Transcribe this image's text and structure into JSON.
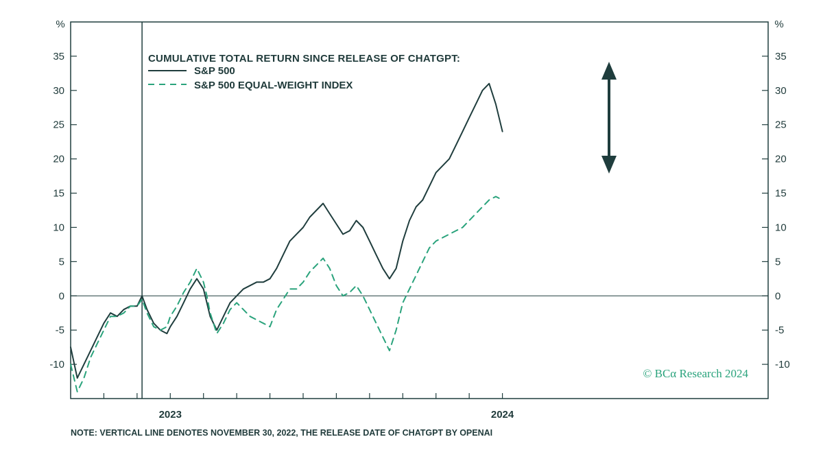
{
  "chart_data": {
    "type": "line",
    "title": "CUMULATIVE TOTAL RETURN SINCE RELEASE OF CHATGPT:",
    "ylabel": "%",
    "ylim": [
      -15,
      40
    ],
    "yticks": [
      -10,
      -5,
      0,
      5,
      10,
      15,
      20,
      25,
      30,
      35
    ],
    "xlim": [
      2022.7,
      2024.8
    ],
    "x_tick_positions": [
      2022.8,
      2022.9,
      2023.0,
      2023.1,
      2023.2,
      2023.3,
      2023.4,
      2023.5,
      2023.6,
      2023.7,
      2023.8,
      2023.9,
      2024.0
    ],
    "x_year_labels": [
      {
        "x": 2023.0,
        "label": "2023"
      },
      {
        "x": 2024.0,
        "label": "2024"
      }
    ],
    "vertical_line_x": 2022.915,
    "vertical_line_label": "November 30, 2022",
    "zero_line": true,
    "legend_position": "top-left",
    "series": [
      {
        "name": "S&P 500",
        "style": "solid",
        "color": "#1f3d3d",
        "x": [
          2022.7,
          2022.72,
          2022.74,
          2022.76,
          2022.78,
          2022.8,
          2022.82,
          2022.84,
          2022.86,
          2022.88,
          2022.9,
          2022.915,
          2022.93,
          2022.95,
          2022.97,
          2022.99,
          2023.0,
          2023.02,
          2023.04,
          2023.06,
          2023.08,
          2023.1,
          2023.11,
          2023.12,
          2023.14,
          2023.16,
          2023.18,
          2023.2,
          2023.22,
          2023.24,
          2023.26,
          2023.28,
          2023.3,
          2023.32,
          2023.34,
          2023.36,
          2023.38,
          2023.4,
          2023.42,
          2023.44,
          2023.46,
          2023.48,
          2023.5,
          2023.52,
          2023.54,
          2023.56,
          2023.58,
          2023.6,
          2023.62,
          2023.64,
          2023.66,
          2023.68,
          2023.7,
          2023.72,
          2023.74,
          2023.76,
          2023.78,
          2023.8,
          2023.82,
          2023.84,
          2023.86,
          2023.88,
          2023.9,
          2023.92,
          2023.94,
          2023.96,
          2023.98,
          2024.0
        ],
        "values": [
          -7.5,
          -12,
          -10,
          -8,
          -6,
          -4,
          -2.5,
          -3,
          -2,
          -1.5,
          -1.5,
          0,
          -2,
          -4,
          -5,
          -5.5,
          -4.5,
          -3,
          -1,
          1,
          2.5,
          1,
          -1,
          -3,
          -5,
          -3,
          -1,
          0,
          1,
          1.5,
          2,
          2,
          2.5,
          4,
          6,
          8,
          9,
          10,
          11.5,
          12.5,
          13.5,
          12,
          10.5,
          9,
          9.5,
          11,
          10,
          8,
          6,
          4,
          2.5,
          4,
          8,
          11,
          13,
          14,
          16,
          18,
          19,
          20,
          22,
          24,
          26,
          28,
          30,
          31,
          28,
          24
        ]
      },
      {
        "name": "S&P 500 EQUAL-WEIGHT INDEX",
        "style": "dashed",
        "color": "#2aa37c",
        "x": [
          2022.7,
          2022.72,
          2022.74,
          2022.76,
          2022.78,
          2022.8,
          2022.82,
          2022.84,
          2022.86,
          2022.88,
          2022.9,
          2022.915,
          2022.93,
          2022.95,
          2022.97,
          2022.99,
          2023.0,
          2023.02,
          2023.04,
          2023.06,
          2023.08,
          2023.1,
          2023.11,
          2023.12,
          2023.14,
          2023.16,
          2023.18,
          2023.2,
          2023.22,
          2023.24,
          2023.26,
          2023.28,
          2023.3,
          2023.32,
          2023.34,
          2023.36,
          2023.38,
          2023.4,
          2023.42,
          2023.44,
          2023.46,
          2023.48,
          2023.5,
          2023.52,
          2023.54,
          2023.56,
          2023.58,
          2023.6,
          2023.62,
          2023.64,
          2023.66,
          2023.68,
          2023.7,
          2023.72,
          2023.74,
          2023.76,
          2023.78,
          2023.8,
          2023.82,
          2023.84,
          2023.86,
          2023.88,
          2023.9,
          2023.92,
          2023.94,
          2023.96,
          2023.98,
          2024.0
        ],
        "values": [
          -10,
          -14,
          -12,
          -9,
          -7,
          -5,
          -3,
          -3,
          -2.5,
          -1.5,
          -1.5,
          -0.5,
          -2.5,
          -4.5,
          -5,
          -4.5,
          -3,
          -1.5,
          0.5,
          2,
          4,
          2,
          0,
          -2.5,
          -5.5,
          -4,
          -2,
          -1,
          -2,
          -3,
          -3.5,
          -4,
          -4.5,
          -2,
          -0.5,
          1,
          1,
          2,
          3.5,
          4.5,
          5.5,
          4,
          1.5,
          0,
          0.5,
          1.5,
          0,
          -2,
          -4,
          -6,
          -8,
          -5,
          -1,
          1,
          3,
          5,
          7,
          8,
          8.5,
          9,
          9.5,
          10,
          11,
          12,
          13,
          14,
          14.5,
          14
        ]
      }
    ],
    "annotations": {
      "arrow": "double-headed vertical arrow marking the performance gap",
      "note": "NOTE: VERTICAL LINE DENOTES NOVEMBER 30, 2022, THE RELEASE DATE OF CHATGPT BY OPENAI",
      "credit": "© BCα Research 2024"
    }
  }
}
